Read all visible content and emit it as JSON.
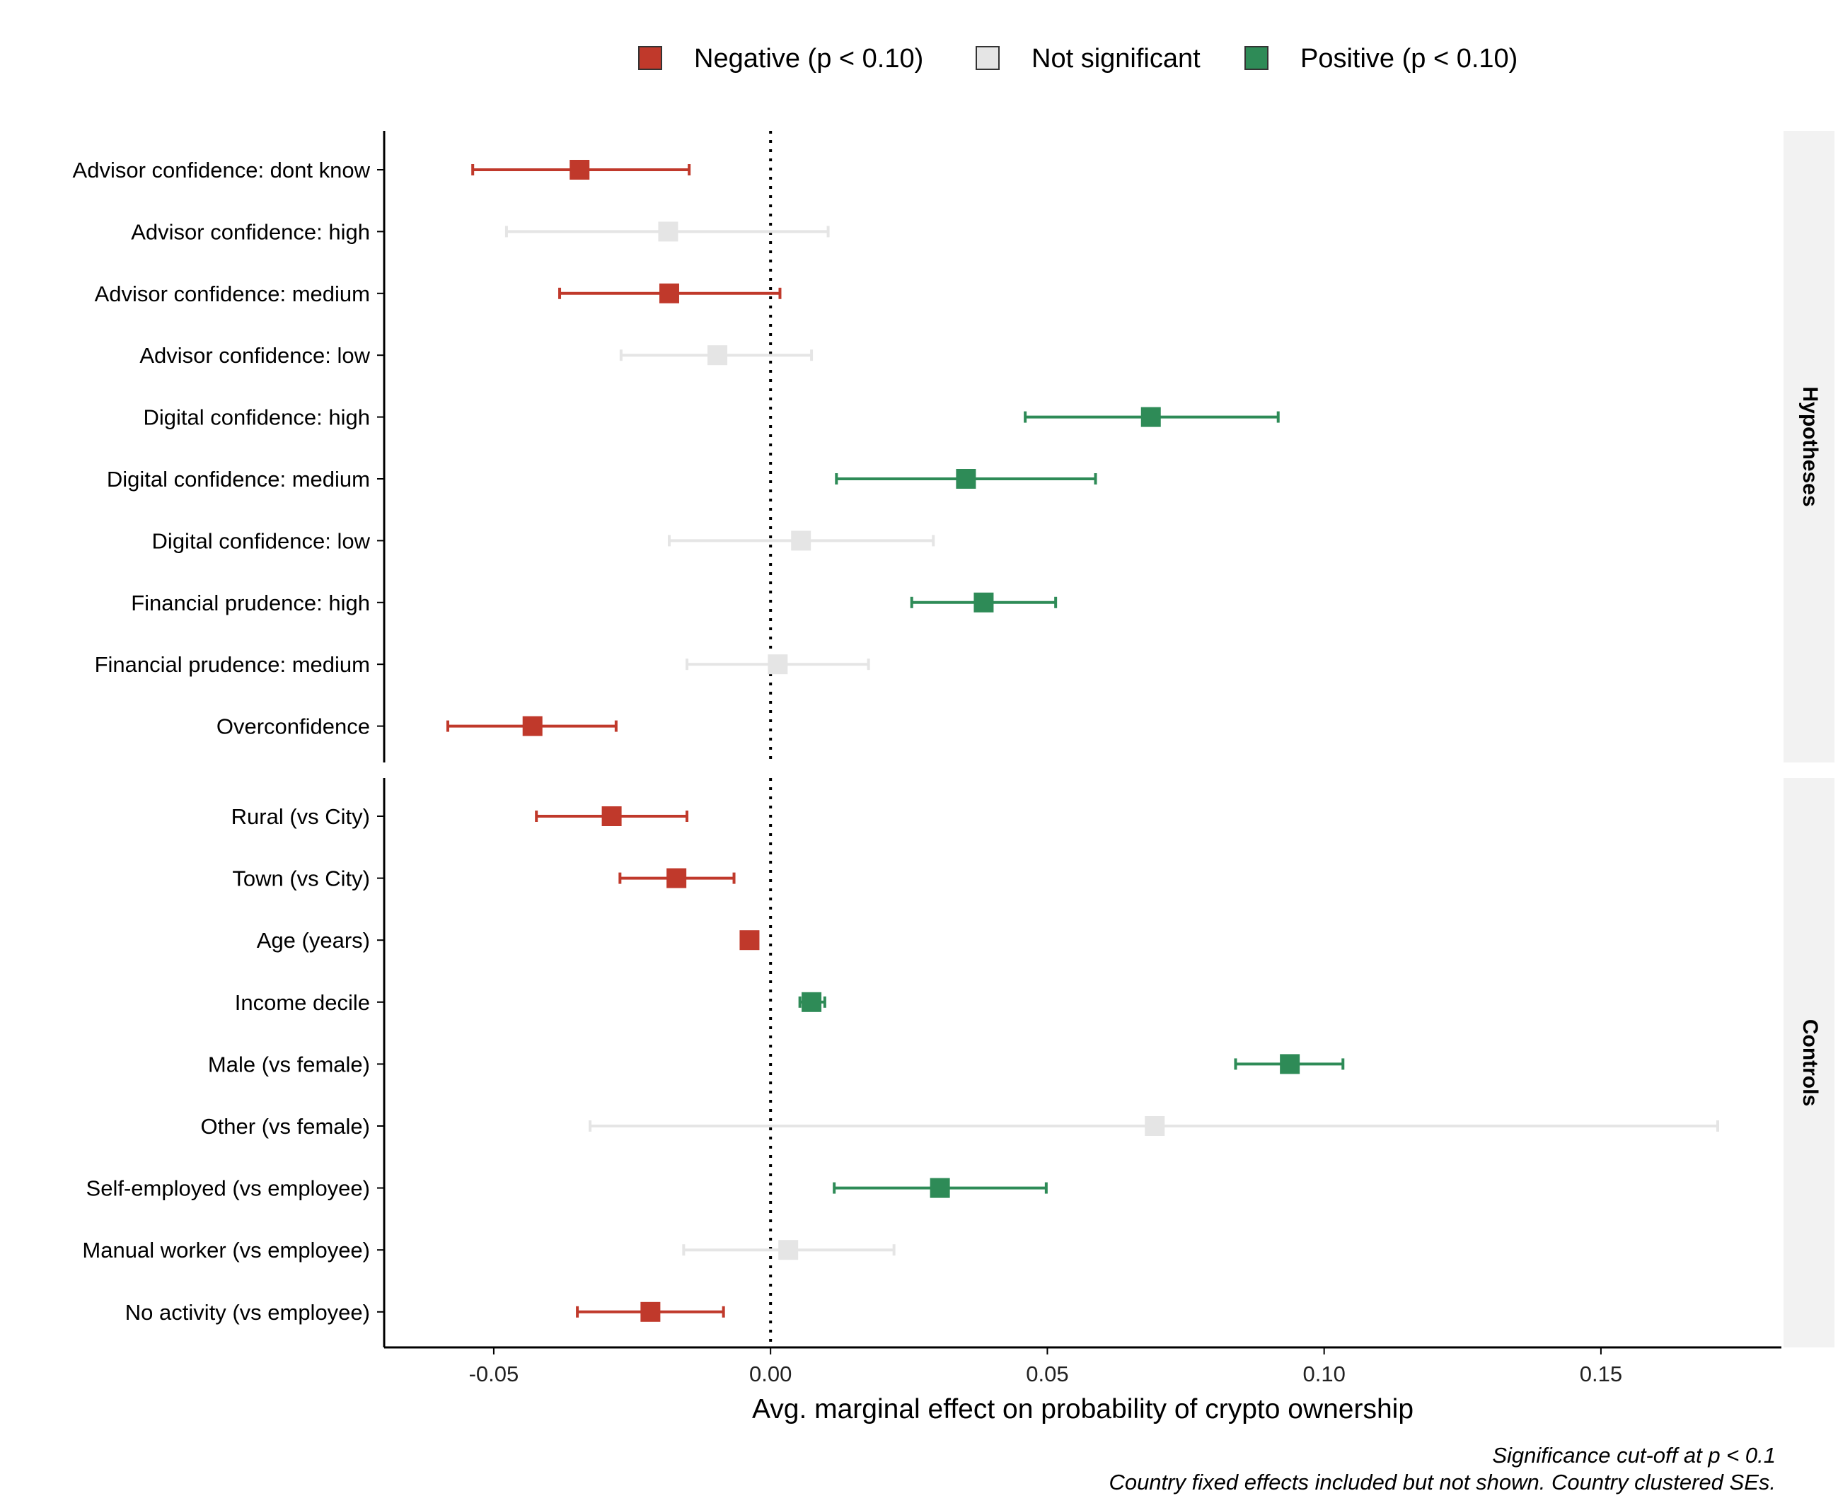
{
  "chart_data": {
    "type": "scatter",
    "subtype": "coefficient-plot-with-error-bars",
    "xlabel": "Avg. marginal effect on probability of crypto ownership",
    "xlim": [
      -0.0698,
      0.1826
    ],
    "xticks": [
      -0.05,
      0.0,
      0.05,
      0.1,
      0.15
    ],
    "xtick_labels": [
      "-0.05",
      "0.00",
      "0.05",
      "0.10",
      "0.15"
    ],
    "reference_line": 0,
    "grid": false,
    "legend": {
      "placement": "top",
      "entries": [
        {
          "key": "neg",
          "label": "Negative (p < 0.10)"
        },
        {
          "key": "ns",
          "label": "Not significant"
        },
        {
          "key": "pos",
          "label": "Positive (p < 0.10)"
        }
      ]
    },
    "colors": {
      "neg": "#C0392B",
      "ns": "#E5E5E5",
      "pos": "#2E8B57"
    },
    "panels": [
      {
        "label": "Hypotheses",
        "rows": [
          {
            "term": "Advisor confidence: dont know",
            "estimate": -0.0345,
            "lo": -0.0538,
            "hi": -0.0147,
            "sig": "neg"
          },
          {
            "term": "Advisor confidence: high",
            "estimate": -0.0185,
            "lo": -0.0477,
            "hi": 0.0104,
            "sig": "ns"
          },
          {
            "term": "Advisor confidence: medium",
            "estimate": -0.0183,
            "lo": -0.0381,
            "hi": 0.0017,
            "sig": "neg"
          },
          {
            "term": "Advisor confidence: low",
            "estimate": -0.0096,
            "lo": -0.027,
            "hi": 0.0074,
            "sig": "ns"
          },
          {
            "term": "Digital confidence: high",
            "estimate": 0.0687,
            "lo": 0.046,
            "hi": 0.0917,
            "sig": "pos"
          },
          {
            "term": "Digital confidence: medium",
            "estimate": 0.0353,
            "lo": 0.0119,
            "hi": 0.0587,
            "sig": "pos"
          },
          {
            "term": "Digital confidence: low",
            "estimate": 0.0055,
            "lo": -0.0183,
            "hi": 0.0294,
            "sig": "ns"
          },
          {
            "term": "Financial prudence: high",
            "estimate": 0.0385,
            "lo": 0.0255,
            "hi": 0.0515,
            "sig": "pos"
          },
          {
            "term": "Financial prudence: medium",
            "estimate": 0.0013,
            "lo": -0.0151,
            "hi": 0.0177,
            "sig": "ns"
          },
          {
            "term": "Overconfidence",
            "estimate": -0.043,
            "lo": -0.0583,
            "hi": -0.0279,
            "sig": "neg"
          }
        ]
      },
      {
        "label": "Controls",
        "rows": [
          {
            "term": "Rural (vs City)",
            "estimate": -0.0287,
            "lo": -0.0423,
            "hi": -0.0151,
            "sig": "neg"
          },
          {
            "term": "Town (vs City)",
            "estimate": -0.017,
            "lo": -0.0272,
            "hi": -0.0066,
            "sig": "neg"
          },
          {
            "term": "Age (years)",
            "estimate": -0.0038,
            "lo": -0.0043,
            "hi": -0.0033,
            "sig": "neg"
          },
          {
            "term": "Income decile",
            "estimate": 0.0074,
            "lo": 0.0053,
            "hi": 0.0098,
            "sig": "pos"
          },
          {
            "term": "Male (vs female)",
            "estimate": 0.0938,
            "lo": 0.084,
            "hi": 0.1034,
            "sig": "pos"
          },
          {
            "term": "Other (vs female)",
            "estimate": 0.0694,
            "lo": -0.0326,
            "hi": 0.1711,
            "sig": "ns"
          },
          {
            "term": "Self-employed (vs employee)",
            "estimate": 0.0306,
            "lo": 0.0115,
            "hi": 0.0498,
            "sig": "pos"
          },
          {
            "term": "Manual worker (vs employee)",
            "estimate": 0.0032,
            "lo": -0.0157,
            "hi": 0.0223,
            "sig": "ns"
          },
          {
            "term": "No activity (vs employee)",
            "estimate": -0.0217,
            "lo": -0.0349,
            "hi": -0.0085,
            "sig": "neg"
          }
        ]
      }
    ],
    "caption": [
      "Significance cut-off at p < 0.1",
      "Country fixed effects included but not shown. Country clustered SEs."
    ]
  }
}
